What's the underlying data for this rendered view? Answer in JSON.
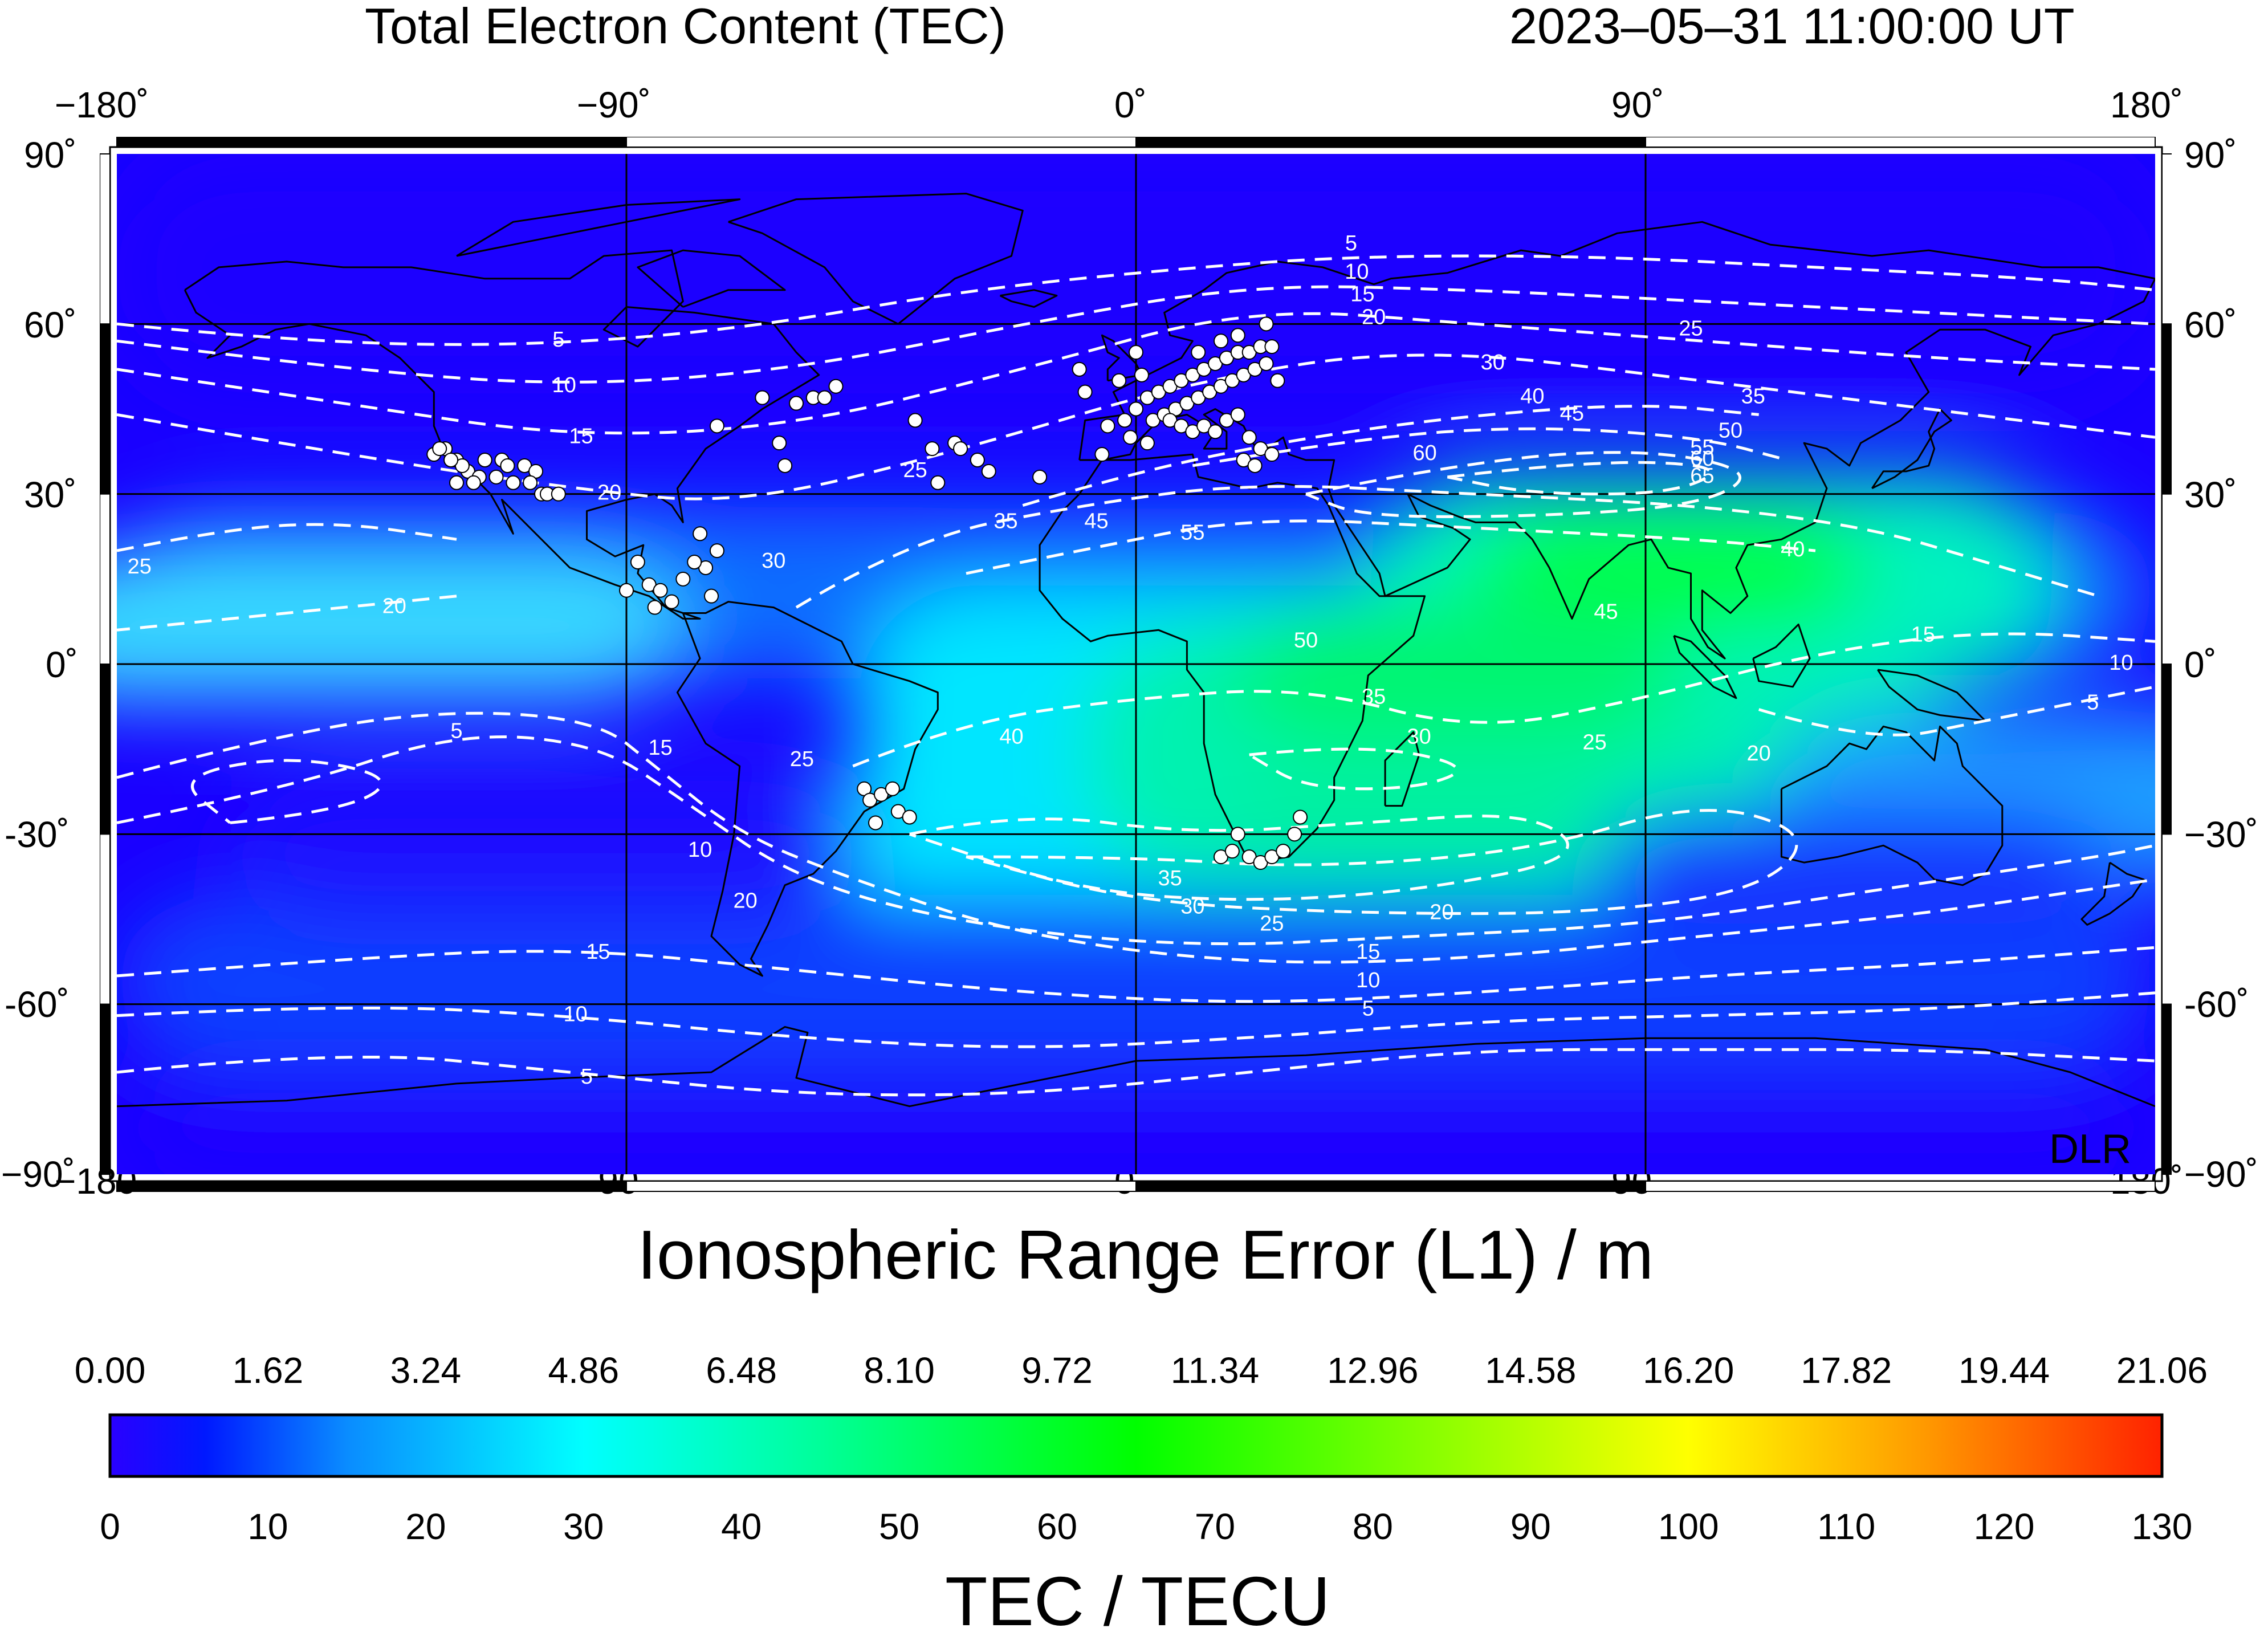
{
  "header": {
    "title": "Total Electron Content (TEC)",
    "timestamp": "2023–05–31  11:00:00 UT"
  },
  "map": {
    "lon_labels": [
      "−180˚",
      "−90˚",
      "0˚",
      "90˚",
      "180˚"
    ],
    "lat_labels": [
      "90˚",
      "60˚",
      "30˚",
      "0˚",
      "-30˚",
      "-60˚",
      "−90˚"
    ],
    "lat_labels_right": [
      "90˚",
      "60˚",
      "30˚",
      "0˚",
      "−30˚",
      "-60˚",
      "−90˚"
    ],
    "watermark": "DLR",
    "contour_levels": [
      5,
      10,
      15,
      20,
      25,
      30,
      35,
      40,
      45,
      50,
      55,
      60,
      65
    ],
    "colors": {
      "low": "#1a00ff",
      "mid_low": "#0a6cff",
      "cyan": "#00ffff",
      "green": "#00ff00",
      "contour": "#ffffff",
      "station": "#ffffff"
    }
  },
  "chart_data": {
    "type": "heatmap",
    "title": "Total Electron Content (TEC)",
    "timestamp": "2023–05–31  11:00:00 UT",
    "xlabel_ticks": [
      -180,
      -90,
      0,
      90,
      180
    ],
    "ylabel_ticks": [
      90,
      60,
      30,
      0,
      -30,
      -60,
      -90
    ],
    "xlim": [
      -180,
      180
    ],
    "ylim": [
      -90,
      90
    ],
    "grid": true,
    "contours": [
      {
        "level": 5,
        "label_positions": [
          [
            -102,
            57
          ],
          [
            38,
            74
          ],
          [
            -120,
            -12
          ],
          [
            -97,
            -73
          ],
          [
            41,
            -61
          ],
          [
            169,
            -7
          ]
        ]
      },
      {
        "level": 10,
        "label_positions": [
          [
            -101,
            49
          ],
          [
            39,
            69
          ],
          [
            -77,
            -33
          ],
          [
            -99,
            -62
          ],
          [
            41,
            -56
          ],
          [
            174,
            0
          ]
        ]
      },
      {
        "level": 15,
        "label_positions": [
          [
            -98,
            40
          ],
          [
            40,
            65
          ],
          [
            -84,
            -15
          ],
          [
            -95,
            -51
          ],
          [
            41,
            -51
          ],
          [
            139,
            5
          ]
        ]
      },
      {
        "level": 20,
        "label_positions": [
          [
            -93,
            30
          ],
          [
            42,
            61
          ],
          [
            -131,
            10
          ],
          [
            -69,
            -42
          ],
          [
            54,
            -44
          ],
          [
            110,
            -16
          ]
        ]
      },
      {
        "level": 25,
        "label_positions": [
          [
            -176,
            17
          ],
          [
            -39,
            34
          ],
          [
            -59,
            -17
          ],
          [
            98,
            59
          ],
          [
            24,
            -46
          ],
          [
            81,
            -14
          ]
        ]
      },
      {
        "level": 30,
        "label_positions": [
          [
            -64,
            18
          ],
          [
            63,
            53
          ],
          [
            10,
            -43
          ],
          [
            50,
            -13
          ]
        ]
      },
      {
        "level": 35,
        "label_positions": [
          [
            -23,
            25
          ],
          [
            6,
            -38
          ],
          [
            42,
            -6
          ],
          [
            109,
            47
          ]
        ]
      },
      {
        "level": 40,
        "label_positions": [
          [
            -22,
            -13
          ],
          [
            70,
            47
          ],
          [
            116,
            20
          ]
        ]
      },
      {
        "level": 45,
        "label_positions": [
          [
            77,
            44
          ],
          [
            -7,
            25
          ],
          [
            83,
            9
          ]
        ]
      },
      {
        "level": 50,
        "label_positions": [
          [
            105,
            41
          ],
          [
            30,
            4
          ]
        ]
      },
      {
        "level": 55,
        "label_positions": [
          [
            10,
            23
          ],
          [
            100,
            38
          ]
        ]
      },
      {
        "level": 60,
        "label_positions": [
          [
            51,
            37
          ],
          [
            100,
            36
          ]
        ]
      },
      {
        "level": 65,
        "label_positions": [
          [
            100,
            33
          ]
        ]
      }
    ],
    "stations": [
      [
        -124,
        37
      ],
      [
        -122,
        38
      ],
      [
        -120,
        36
      ],
      [
        -118,
        34
      ],
      [
        -116,
        33
      ],
      [
        -117,
        32
      ],
      [
        -119,
        35
      ],
      [
        -121,
        36
      ],
      [
        -123,
        38
      ],
      [
        -115,
        36
      ],
      [
        -112,
        36
      ],
      [
        -111,
        35
      ],
      [
        -108,
        35
      ],
      [
        -106,
        34
      ],
      [
        -105,
        30
      ],
      [
        -104,
        30
      ],
      [
        -107,
        32
      ],
      [
        -110,
        32
      ],
      [
        -113,
        33
      ],
      [
        -120,
        32
      ],
      [
        -102,
        30
      ],
      [
        -88,
        18
      ],
      [
        -86,
        14
      ],
      [
        -84,
        13
      ],
      [
        -82,
        11
      ],
      [
        -85,
        10
      ],
      [
        -90,
        13
      ],
      [
        -76,
        17
      ],
      [
        -74,
        20
      ],
      [
        -78,
        18
      ],
      [
        -75,
        12
      ],
      [
        -80,
        15
      ],
      [
        -77,
        23
      ],
      [
        -74,
        42
      ],
      [
        -66,
        47
      ],
      [
        -60,
        46
      ],
      [
        -57,
        47
      ],
      [
        -55,
        47
      ],
      [
        -53,
        49
      ],
      [
        -63,
        39
      ],
      [
        -62,
        35
      ],
      [
        -39,
        43
      ],
      [
        -36,
        38
      ],
      [
        -32,
        39
      ],
      [
        -31,
        38
      ],
      [
        -28,
        36
      ],
      [
        -26,
        34
      ],
      [
        -17,
        33
      ],
      [
        -35,
        32
      ],
      [
        -48,
        -22
      ],
      [
        -47,
        -24
      ],
      [
        -45,
        -23
      ],
      [
        -43,
        -22
      ],
      [
        -42,
        -26
      ],
      [
        -40,
        -27
      ],
      [
        -46,
        -28
      ],
      [
        -9,
        48
      ],
      [
        -10,
        52
      ],
      [
        -5,
        42
      ],
      [
        -2,
        43
      ],
      [
        0,
        45
      ],
      [
        2,
        47
      ],
      [
        4,
        48
      ],
      [
        6,
        49
      ],
      [
        8,
        50
      ],
      [
        10,
        51
      ],
      [
        12,
        52
      ],
      [
        14,
        53
      ],
      [
        16,
        54
      ],
      [
        18,
        55
      ],
      [
        20,
        55
      ],
      [
        22,
        56
      ],
      [
        24,
        56
      ],
      [
        -3,
        50
      ],
      [
        1,
        51
      ],
      [
        3,
        43
      ],
      [
        5,
        44
      ],
      [
        7,
        45
      ],
      [
        9,
        46
      ],
      [
        11,
        47
      ],
      [
        13,
        48
      ],
      [
        15,
        49
      ],
      [
        17,
        50
      ],
      [
        19,
        51
      ],
      [
        21,
        52
      ],
      [
        23,
        53
      ],
      [
        25,
        50
      ],
      [
        6,
        43
      ],
      [
        8,
        42
      ],
      [
        10,
        41
      ],
      [
        12,
        42
      ],
      [
        14,
        41
      ],
      [
        16,
        43
      ],
      [
        18,
        44
      ],
      [
        20,
        40
      ],
      [
        22,
        38
      ],
      [
        24,
        37
      ],
      [
        19,
        36
      ],
      [
        21,
        35
      ],
      [
        0,
        55
      ],
      [
        -6,
        37
      ],
      [
        -1,
        40
      ],
      [
        2,
        39
      ],
      [
        11,
        55
      ],
      [
        15,
        57
      ],
      [
        18,
        58
      ],
      [
        23,
        60
      ],
      [
        15,
        -34
      ],
      [
        17,
        -33
      ],
      [
        18,
        -30
      ],
      [
        20,
        -34
      ],
      [
        22,
        -35
      ],
      [
        24,
        -34
      ],
      [
        26,
        -33
      ],
      [
        28,
        -30
      ],
      [
        29,
        -27
      ]
    ]
  },
  "colorbar": {
    "title_top": "Ionospheric Range Error (L1) / m",
    "title_bottom": "TEC / TECU",
    "top_ticks": [
      "0.00",
      "1.62",
      "3.24",
      "4.86",
      "6.48",
      "8.10",
      "9.72",
      "11.34",
      "12.96",
      "14.58",
      "16.20",
      "17.82",
      "19.44",
      "21.06"
    ],
    "bottom_ticks": [
      "0",
      "10",
      "20",
      "30",
      "40",
      "50",
      "60",
      "70",
      "80",
      "90",
      "100",
      "110",
      "120",
      "130"
    ],
    "range": [
      0,
      130
    ],
    "stops": [
      {
        "value": 0,
        "color": "#2a00ff"
      },
      {
        "value": 6,
        "color": "#0018ff"
      },
      {
        "value": 15,
        "color": "#0a8cff"
      },
      {
        "value": 30,
        "color": "#00ffff"
      },
      {
        "value": 45,
        "color": "#00ff99"
      },
      {
        "value": 65,
        "color": "#00ff00"
      },
      {
        "value": 100,
        "color": "#ffff00"
      },
      {
        "value": 115,
        "color": "#ff9900"
      },
      {
        "value": 130,
        "color": "#ff2200"
      }
    ]
  }
}
